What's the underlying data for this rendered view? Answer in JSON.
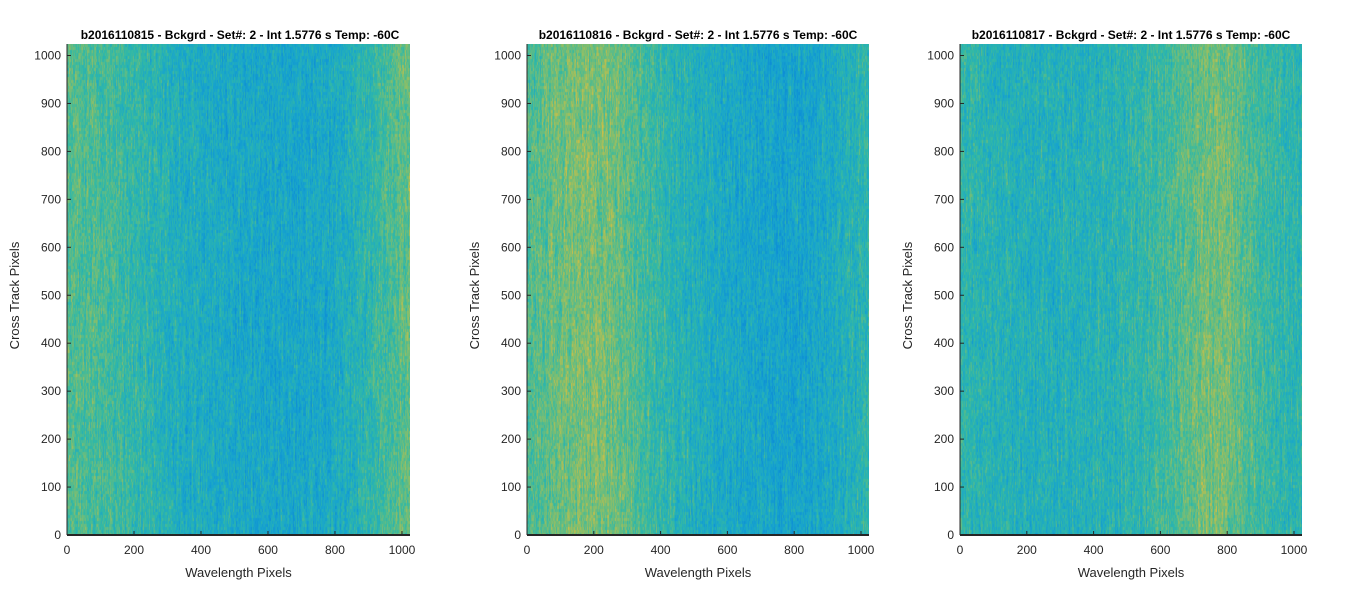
{
  "chart_data": [
    {
      "type": "heatmap",
      "title": "b2016110815 - Bckgrd - Set#: 2 - Int 1.5776 s Temp: -60C",
      "xlabel": "Wavelength Pixels",
      "ylabel": "Cross Track Pixels",
      "xlim": [
        0,
        1024
      ],
      "ylim": [
        0,
        1024
      ],
      "xticks": [
        0,
        200,
        400,
        600,
        800,
        1000
      ],
      "yticks": [
        0,
        100,
        200,
        300,
        400,
        500,
        600,
        700,
        800,
        900,
        1000
      ],
      "colormap": "parula",
      "column_profile": [
        0.62,
        0.58,
        0.55,
        0.5,
        0.44,
        0.38,
        0.34,
        0.32,
        0.3,
        0.28,
        0.27,
        0.27,
        0.28,
        0.3,
        0.36,
        0.45,
        0.57,
        0.66
      ]
    },
    {
      "type": "heatmap",
      "title": "b2016110816 - Bckgrd - Set#: 2 - Int 1.5776 s Temp: -60C",
      "xlabel": "Wavelength Pixels",
      "ylabel": "Cross Track Pixels",
      "xlim": [
        0,
        1024
      ],
      "ylim": [
        0,
        1024
      ],
      "xticks": [
        0,
        200,
        400,
        600,
        800,
        1000
      ],
      "yticks": [
        0,
        100,
        200,
        300,
        400,
        500,
        600,
        700,
        800,
        900,
        1000
      ],
      "colormap": "parula",
      "column_profile": [
        0.58,
        0.64,
        0.7,
        0.72,
        0.7,
        0.62,
        0.52,
        0.44,
        0.38,
        0.34,
        0.3,
        0.27,
        0.25,
        0.24,
        0.25,
        0.3,
        0.38,
        0.46
      ]
    },
    {
      "type": "heatmap",
      "title": "b2016110817 - Bckgrd - Set#: 2 - Int 1.5776 s Temp: -60C",
      "xlabel": "Wavelength Pixels",
      "ylabel": "Cross Track Pixels",
      "xlim": [
        0,
        1024
      ],
      "ylim": [
        0,
        1024
      ],
      "xticks": [
        0,
        200,
        400,
        600,
        800,
        1000
      ],
      "yticks": [
        0,
        100,
        200,
        300,
        400,
        500,
        600,
        700,
        800,
        900,
        1000
      ],
      "colormap": "parula",
      "column_profile": [
        0.46,
        0.42,
        0.4,
        0.38,
        0.37,
        0.37,
        0.38,
        0.4,
        0.42,
        0.46,
        0.52,
        0.6,
        0.68,
        0.7,
        0.62,
        0.52,
        0.46,
        0.44
      ]
    }
  ]
}
